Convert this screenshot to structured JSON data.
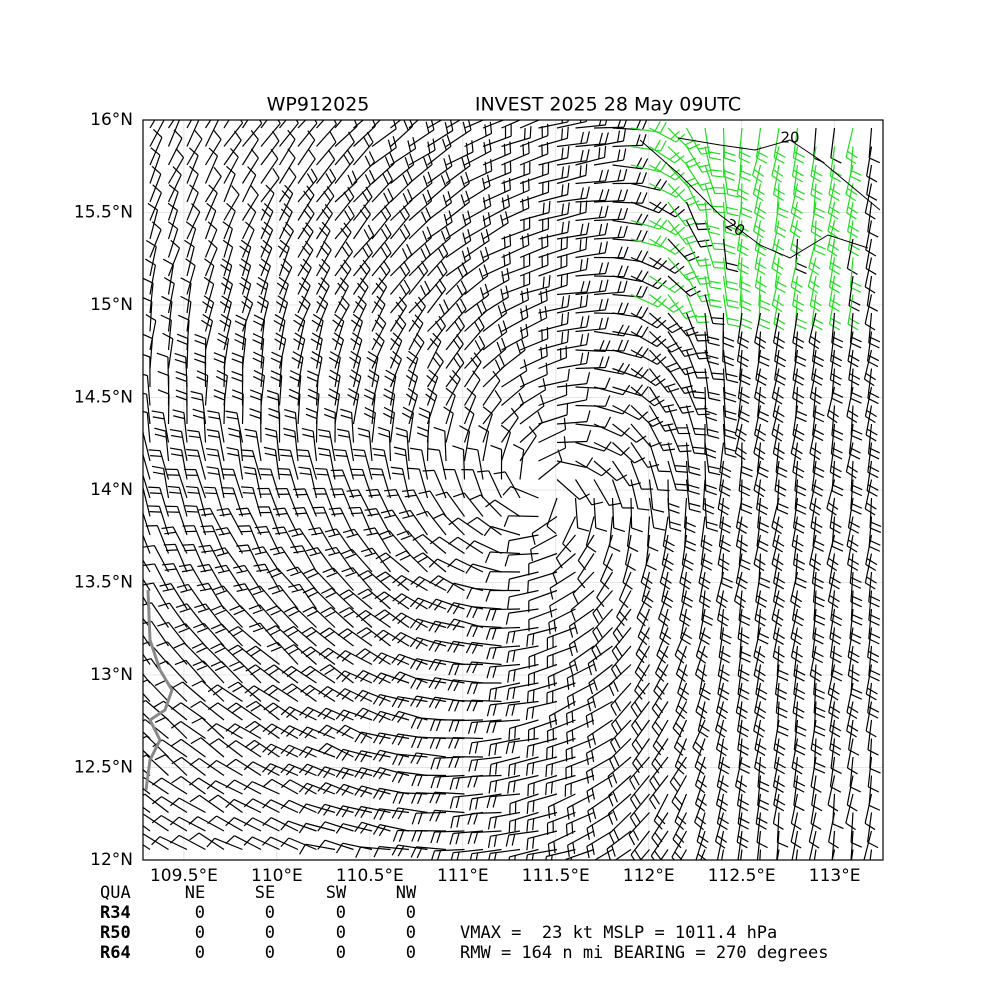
{
  "map": {
    "title_left": "WP912025",
    "title_right": "INVEST 2025 28 May 09UTC",
    "xlim": [
      109.28,
      113.26
    ],
    "ylim": [
      12,
      16
    ],
    "xticks": [
      {
        "value": 109.5,
        "label": "109.5°E"
      },
      {
        "value": 110,
        "label": "110°E"
      },
      {
        "value": 110.5,
        "label": "110.5°E"
      },
      {
        "value": 111,
        "label": "111°E"
      },
      {
        "value": 111.5,
        "label": "111.5°E"
      },
      {
        "value": 112,
        "label": "112°E"
      },
      {
        "value": 112.5,
        "label": "112.5°E"
      },
      {
        "value": 113,
        "label": "113°E"
      }
    ],
    "yticks": [
      {
        "value": 12,
        "label": "12°N"
      },
      {
        "value": 12.5,
        "label": "12.5°N"
      },
      {
        "value": 13,
        "label": "13°N"
      },
      {
        "value": 13.5,
        "label": "13.5°N"
      },
      {
        "value": 14,
        "label": "14°N"
      },
      {
        "value": 14.5,
        "label": "14.5°N"
      },
      {
        "value": 15,
        "label": "15°N"
      },
      {
        "value": 15.5,
        "label": "15.5°N"
      },
      {
        "value": 16,
        "label": "16°N"
      }
    ],
    "contour_labels": [
      "20",
      "20"
    ]
  },
  "table": {
    "header": [
      "QUA",
      "NE",
      "SE",
      "SW",
      "NW"
    ],
    "rows": [
      [
        "R34",
        0,
        0,
        0,
        0
      ],
      [
        "R50",
        0,
        0,
        0,
        0
      ],
      [
        "R64",
        0,
        0,
        0,
        0
      ]
    ]
  },
  "summary": [
    "VMAX =  23 kt MSLP = 1011.4 hPa",
    "RMW = 164 n mi BEARING = 270 degrees"
  ]
}
